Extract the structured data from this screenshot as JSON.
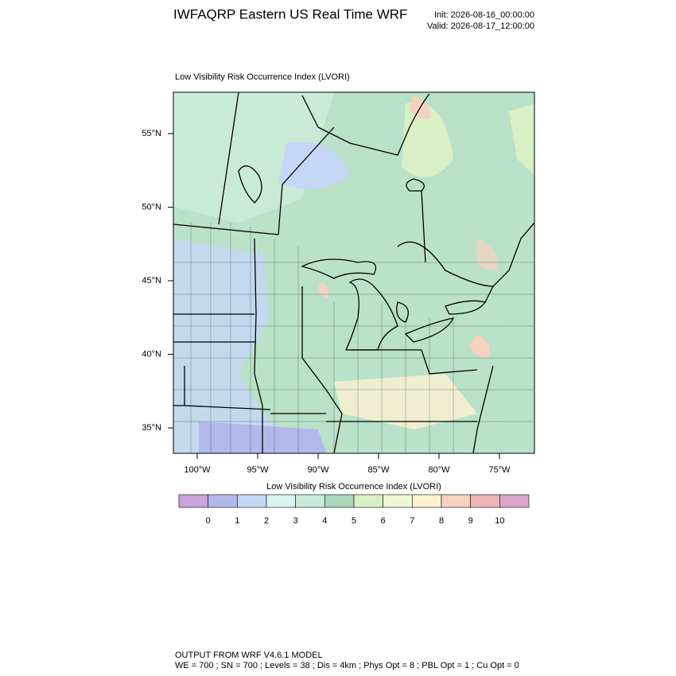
{
  "header": {
    "title": "IWFAQRP Eastern US Real Time WRF",
    "init": "Init: 2026-08-16_00:00:00",
    "valid": "Valid: 2026-08-17_12:00:00"
  },
  "map": {
    "subtitle": "Low Visibility Risk Occurrence Index   (LVORI)",
    "lat_ticks": [
      {
        "value": 55,
        "label": "55°N"
      },
      {
        "value": 50,
        "label": "50°N"
      },
      {
        "value": 45,
        "label": "45°N"
      },
      {
        "value": 40,
        "label": "40°N"
      },
      {
        "value": 35,
        "label": "35°N"
      }
    ],
    "lon_ticks": [
      {
        "value": -100,
        "label": "100°W"
      },
      {
        "value": -95,
        "label": "95°W"
      },
      {
        "value": -90,
        "label": "90°W"
      },
      {
        "value": -85,
        "label": "85°W"
      },
      {
        "value": -80,
        "label": "80°W"
      },
      {
        "value": -75,
        "label": "75°W"
      }
    ]
  },
  "colorbar": {
    "title": "Low Visibility Risk Occurrence Index  (LVORI)",
    "levels": [
      0,
      1,
      2,
      3,
      4,
      5,
      6,
      7,
      8,
      9,
      10
    ],
    "colors": [
      "#c9a3dc",
      "#b3b8ec",
      "#c5d7f5",
      "#d8f5ef",
      "#c8ebd8",
      "#acd7bb",
      "#d9efc6",
      "#eef7d5",
      "#fcf3d2",
      "#f7d1c0",
      "#eeb3b5",
      "#dba6c9"
    ]
  },
  "footer": {
    "line1": "OUTPUT FROM WRF V4.6.1 MODEL",
    "line2": "WE = 700 ; SN = 700 ; Levels = 38 ; Dis = 4km ; Phys Opt = 8 ; PBL Opt = 1 ; Cu Opt = 0"
  }
}
